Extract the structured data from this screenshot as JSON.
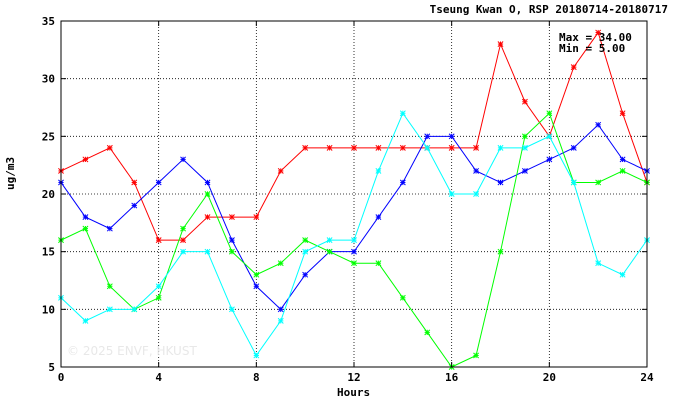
{
  "chart_data": {
    "type": "line",
    "title": "Tseung Kwan O, RSP 20180714-20180717",
    "xlabel": "Hours",
    "ylabel": "ug/m3",
    "xlim": [
      0,
      24
    ],
    "ylim": [
      5,
      35
    ],
    "xticks": [
      0,
      4,
      8,
      12,
      16,
      20,
      24
    ],
    "yticks": [
      5,
      10,
      15,
      20,
      25,
      30,
      35
    ],
    "grid": true,
    "stats": {
      "max": "Max = 34.00",
      "min": "Min = 5.00"
    },
    "watermark": "© 2025 ENVF, HKUST",
    "x": [
      0,
      1,
      2,
      3,
      4,
      5,
      6,
      7,
      8,
      9,
      10,
      11,
      12,
      13,
      14,
      15,
      16,
      17,
      18,
      19,
      20,
      21,
      22,
      23,
      24
    ],
    "series": [
      {
        "color": "#ff0000",
        "values": [
          22,
          23,
          24,
          21,
          16,
          16,
          18,
          18,
          18,
          22,
          24,
          24,
          24,
          24,
          24,
          24,
          24,
          24,
          33,
          28,
          25,
          31,
          34,
          27,
          21
        ]
      },
      {
        "color": "#0000ff",
        "values": [
          21,
          18,
          17,
          19,
          21,
          23,
          21,
          16,
          12,
          10,
          13,
          15,
          15,
          18,
          21,
          25,
          25,
          22,
          21,
          22,
          23,
          24,
          26,
          23,
          22
        ]
      },
      {
        "color": "#00ff00",
        "values": [
          16,
          17,
          12,
          10,
          11,
          17,
          20,
          15,
          13,
          14,
          16,
          15,
          14,
          14,
          11,
          8,
          5,
          6,
          15,
          25,
          27,
          21,
          21,
          22,
          21
        ]
      },
      {
        "color": "#00ffff",
        "values": [
          11,
          9,
          10,
          10,
          12,
          15,
          15,
          10,
          6,
          9,
          15,
          16,
          16,
          22,
          27,
          24,
          20,
          20,
          24,
          24,
          25,
          21,
          14,
          13,
          16
        ]
      }
    ]
  }
}
